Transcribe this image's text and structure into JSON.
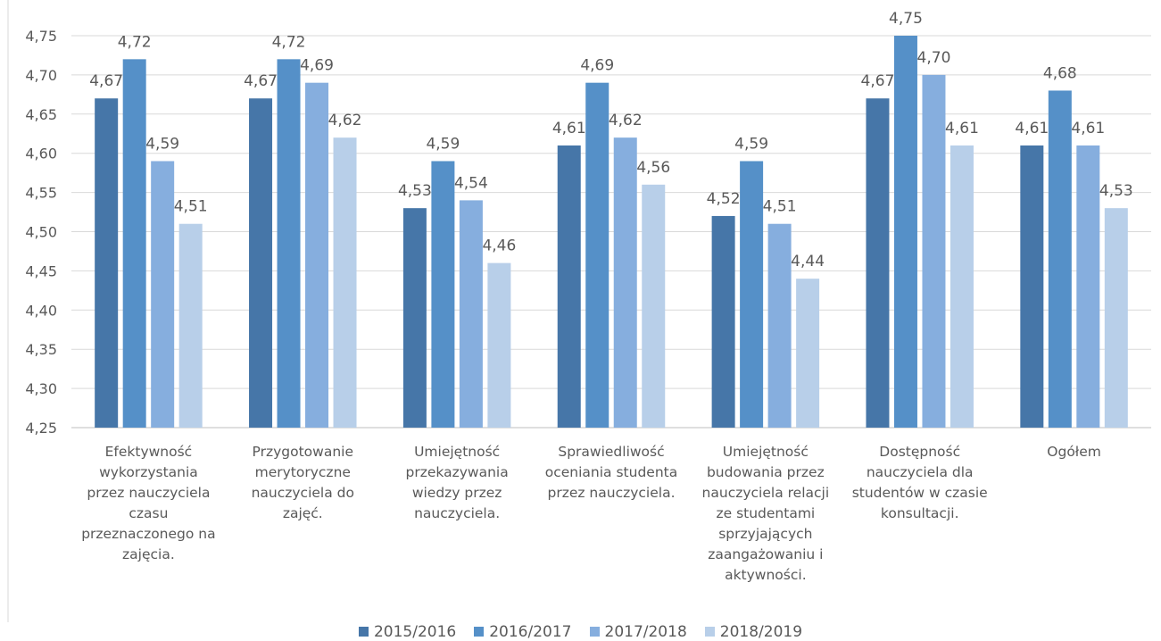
{
  "chart_data": {
    "type": "bar",
    "title": "",
    "xlabel": "",
    "ylabel": "",
    "ylim": [
      4.25,
      4.75
    ],
    "yticks": [
      "4,25",
      "4,30",
      "4,35",
      "4,40",
      "4,45",
      "4,50",
      "4,55",
      "4,60",
      "4,65",
      "4,70",
      "4,75"
    ],
    "grid": true,
    "legend_position": "bottom",
    "categories": [
      [
        "Efektywność",
        "wykorzystania",
        "przez nauczyciela",
        "czasu",
        "przeznaczonego na",
        "zajęcia."
      ],
      [
        "Przygotowanie",
        "merytoryczne",
        "nauczyciela do",
        "zajęć."
      ],
      [
        "Umiejętność",
        "przekazywania",
        "wiedzy przez",
        "nauczyciela."
      ],
      [
        "Sprawiedliwość",
        "oceniania studenta",
        "przez nauczyciela."
      ],
      [
        "Umiejętność",
        "budowania przez",
        "nauczyciela relacji",
        "ze studentami",
        "sprzyjających",
        "zaangażowaniu i",
        "aktywności."
      ],
      [
        "Dostępność",
        "nauczyciela dla",
        "studentów w czasie",
        "konsultacji."
      ],
      [
        "Ogółem"
      ]
    ],
    "series": [
      {
        "name": "2015/2016",
        "color": "#4676a8",
        "values": [
          4.67,
          4.67,
          4.53,
          4.61,
          4.52,
          4.67,
          4.61
        ],
        "labels": [
          "4,67",
          "4,67",
          "4,53",
          "4,61",
          "4,52",
          "4,67",
          "4,61"
        ]
      },
      {
        "name": "2016/2017",
        "color": "#5590c8",
        "values": [
          4.72,
          4.72,
          4.59,
          4.69,
          4.59,
          4.75,
          4.68
        ],
        "labels": [
          "4,72",
          "4,72",
          "4,59",
          "4,69",
          "4,59",
          "4,75",
          "4,68"
        ]
      },
      {
        "name": "2017/2018",
        "color": "#86aede",
        "values": [
          4.59,
          4.69,
          4.54,
          4.62,
          4.51,
          4.7,
          4.61
        ],
        "labels": [
          "4,59",
          "4,69",
          "4,54",
          "4,62",
          "4,51",
          "4,70",
          "4,61"
        ]
      },
      {
        "name": "2018/2019",
        "color": "#b8cfe9",
        "values": [
          4.51,
          4.62,
          4.46,
          4.56,
          4.44,
          4.61,
          4.53
        ],
        "labels": [
          "4,51",
          "4,62",
          "4,46",
          "4,56",
          "4,44",
          "4,61",
          "4,53"
        ]
      }
    ]
  }
}
